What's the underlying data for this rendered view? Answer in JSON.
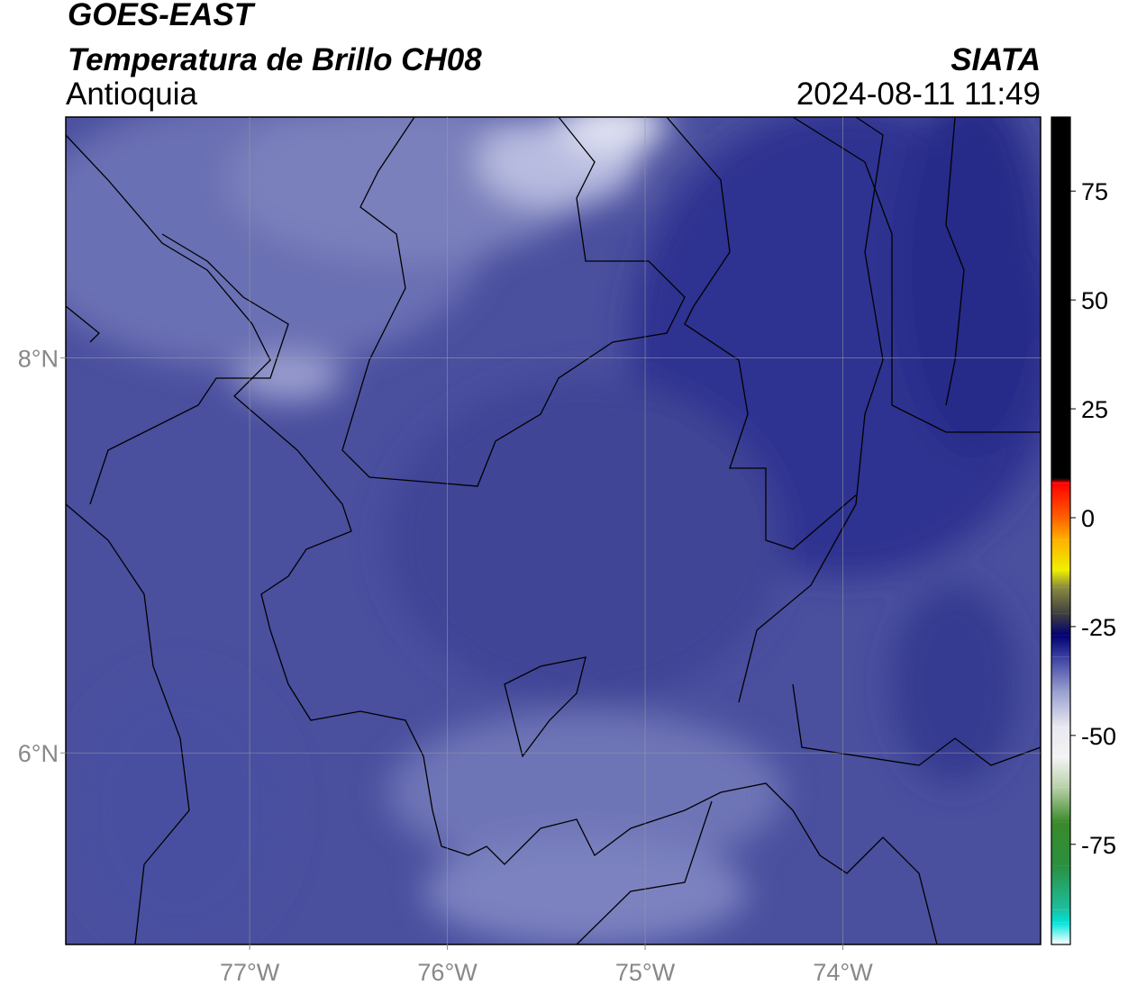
{
  "header": {
    "title": "GOES-EAST",
    "subtitle": "Temperatura de Brillo CH08",
    "agency": "SIATA",
    "region": "Antioquia",
    "datetime": "2024-08-11 11:49"
  },
  "map": {
    "xlim": [
      -77.93,
      -73.0
    ],
    "ylim": [
      5.03,
      9.22
    ],
    "xticks": [
      {
        "value": -77,
        "label": "77°W"
      },
      {
        "value": -76,
        "label": "76°W"
      },
      {
        "value": -75,
        "label": "75°W"
      },
      {
        "value": -74,
        "label": "74°W"
      }
    ],
    "yticks": [
      {
        "value": 6,
        "label": "6°N"
      },
      {
        "value": 8,
        "label": "8°N"
      }
    ],
    "grid": true
  },
  "colorbar": {
    "range": [
      -98,
      92
    ],
    "ticks": [
      -75,
      -50,
      -25,
      0,
      25,
      50,
      75
    ],
    "stops": [
      [
        -98,
        "#ffffff"
      ],
      [
        -93,
        "#00e5dc"
      ],
      [
        -90,
        "#1cc0a0"
      ],
      [
        -80,
        "#2a9040"
      ],
      [
        -70,
        "#3a8a2a"
      ],
      [
        -62,
        "#b8d0a8"
      ],
      [
        -55,
        "#f4f4f4"
      ],
      [
        -48,
        "#e8e8f0"
      ],
      [
        -40,
        "#9aa0d0"
      ],
      [
        -32,
        "#3a40a0"
      ],
      [
        -27,
        "#000070"
      ],
      [
        -22,
        "#404040"
      ],
      [
        -16,
        "#8a8a40"
      ],
      [
        -12,
        "#f0f000"
      ],
      [
        -5,
        "#ffb000"
      ],
      [
        0,
        "#ff6000"
      ],
      [
        8,
        "#ff0000"
      ],
      [
        9,
        "#000000"
      ],
      [
        92,
        "#000000"
      ]
    ]
  }
}
